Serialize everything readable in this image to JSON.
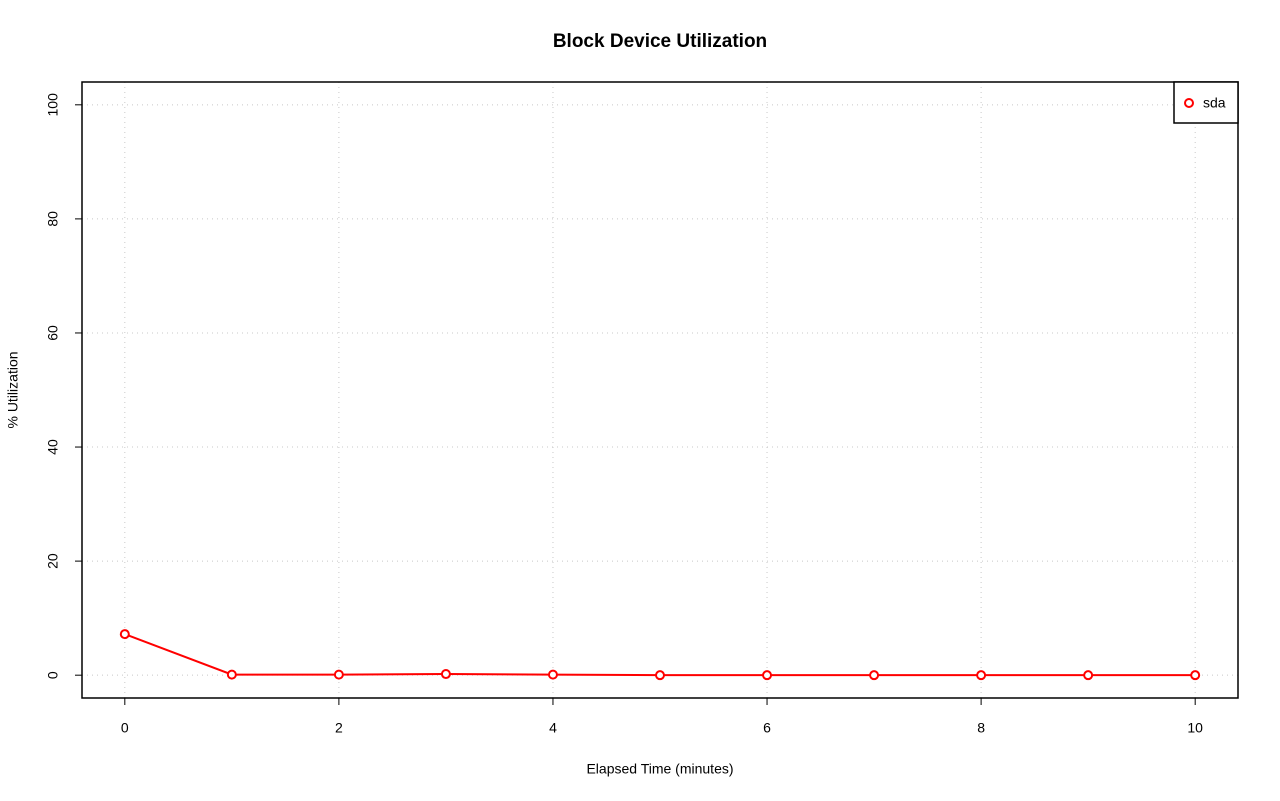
{
  "chart_data": {
    "type": "line",
    "title": "Block Device Utilization",
    "x_label": "Elapsed Time (minutes)",
    "y_label": "% Utilization",
    "x": [
      0,
      1,
      2,
      3,
      4,
      5,
      6,
      7,
      8,
      9,
      10
    ],
    "series": [
      {
        "name": "sda",
        "color": "#ff0000",
        "values": [
          7.2,
          0.1,
          0.1,
          0.2,
          0.1,
          0,
          0,
          0,
          0,
          0,
          0
        ]
      }
    ],
    "xlim": [
      -0.4,
      10.4
    ],
    "xticks": [
      0,
      2,
      4,
      6,
      8,
      10
    ],
    "ylim": [
      -4,
      104
    ],
    "yticks": [
      0,
      20,
      40,
      60,
      80,
      100
    ],
    "grid": true,
    "legend": "topright"
  }
}
